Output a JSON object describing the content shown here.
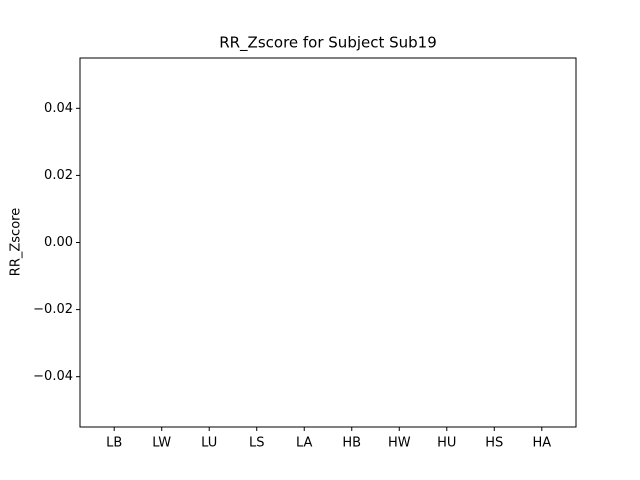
{
  "chart_data": {
    "type": "bar",
    "title": "RR_Zscore for Subject Sub19",
    "ylabel": "RR_Zscore",
    "categories": [
      "LB",
      "LW",
      "LU",
      "LS",
      "LA",
      "HB",
      "HW",
      "HU",
      "HS",
      "HA"
    ],
    "values": [
      0,
      0,
      0,
      0,
      0,
      0,
      0,
      0,
      0,
      0
    ],
    "color": "#1f77b4",
    "ylim": [
      -0.055,
      0.055
    ],
    "yticks": [
      {
        "value": -0.04,
        "label": "−0.04"
      },
      {
        "value": -0.02,
        "label": "−0.02"
      },
      {
        "value": 0,
        "label": "0.00"
      },
      {
        "value": 0.02,
        "label": "0.02"
      },
      {
        "value": 0.04,
        "label": "0.04"
      }
    ]
  }
}
